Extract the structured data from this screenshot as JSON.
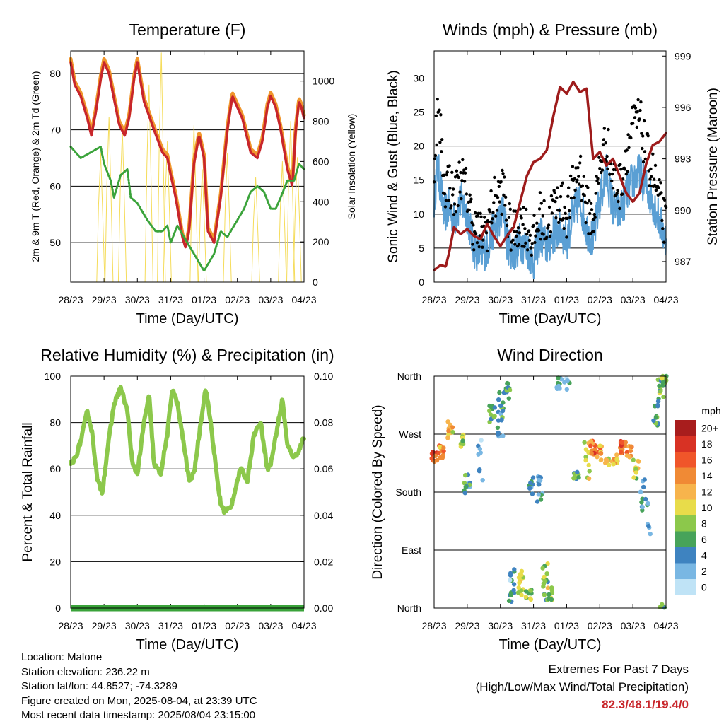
{
  "x_tick_labels": [
    "28/23",
    "29/23",
    "30/23",
    "31/23",
    "01/23",
    "02/23",
    "03/23",
    "04/23"
  ],
  "x_axis_label": "Time (Day/UTC)",
  "colors": {
    "temp_2m": "#c8262b",
    "temp_9m": "#f0962c",
    "dewpoint": "#3aa33a",
    "solar": "#f5dc5a",
    "wind": "#5a9fd4",
    "gust": "#000000",
    "pressure": "#9e1b1b",
    "rh": "#8cc84b",
    "precip": "#3aa33a"
  },
  "chart_data": [
    {
      "id": "temperature",
      "type": "line",
      "title": "Temperature (F)",
      "xlabel": "Time (Day/UTC)",
      "ylabel": "2m & 9m T (Red, Orange) & 2m Td (Green)",
      "ylabel_right": "Solar Insolation (Yellow)",
      "x_days": [
        0,
        7
      ],
      "ylim": [
        43,
        84
      ],
      "yticks": [
        50,
        60,
        70,
        80
      ],
      "ylim_right": [
        0,
        1150
      ],
      "yticks_right": [
        0,
        200,
        400,
        600,
        800,
        1000
      ],
      "series": [
        {
          "key": "temp_2m",
          "x": [
            0,
            0.12,
            0.3,
            0.5,
            0.62,
            0.75,
            0.9,
            1,
            1.15,
            1.45,
            1.62,
            1.75,
            1.9,
            2,
            2.2,
            2.5,
            2.75,
            2.9,
            3,
            3.15,
            3.35,
            3.45,
            3.55,
            3.7,
            3.85,
            4,
            4.12,
            4.3,
            4.5,
            4.7,
            4.85,
            5,
            5.15,
            5.4,
            5.6,
            5.75,
            5.9,
            6,
            6.15,
            6.3,
            6.5,
            6.65,
            6.75,
            6.85,
            6.92,
            7
          ],
          "values": [
            82,
            78,
            76,
            72,
            69,
            73,
            79,
            82,
            80,
            71,
            69,
            72,
            79,
            82,
            75,
            70,
            66,
            65,
            62,
            58,
            51,
            49,
            52,
            64,
            69,
            65,
            52,
            50,
            58,
            70,
            76,
            74,
            72,
            66,
            65,
            68,
            74,
            76,
            74,
            70,
            63,
            60,
            70,
            75,
            74,
            72
          ]
        },
        {
          "key": "dewpoint",
          "x": [
            0,
            0.3,
            0.6,
            0.9,
            1,
            1.2,
            1.3,
            1.5,
            1.7,
            1.8,
            2,
            2.3,
            2.55,
            2.75,
            2.9,
            3,
            3.2,
            3.4,
            3.6,
            3.8,
            4,
            4.1,
            4.3,
            4.5,
            4.7,
            4.9,
            5.2,
            5.4,
            5.6,
            5.8,
            6,
            6.15,
            6.3,
            6.5,
            6.7,
            6.85,
            7
          ],
          "values": [
            67,
            65,
            66,
            67,
            64,
            61,
            58,
            62,
            63,
            58,
            57,
            54,
            52,
            52,
            53,
            50,
            53,
            51,
            49,
            47,
            45,
            46,
            48,
            52,
            51,
            53,
            56,
            59,
            60,
            59,
            56,
            56,
            58,
            61,
            61,
            64,
            63
          ]
        }
      ],
      "solar_peaks": [
        {
          "day": 0.9,
          "peak": 640
        },
        {
          "day": 1.15,
          "peak": 820
        },
        {
          "day": 1.55,
          "peak": 760
        },
        {
          "day": 2.35,
          "peak": 980
        },
        {
          "day": 2.72,
          "peak": 1140
        },
        {
          "day": 2.9,
          "peak": 700
        },
        {
          "day": 3.7,
          "peak": 780
        },
        {
          "day": 3.95,
          "peak": 560
        },
        {
          "day": 4.7,
          "peak": 640
        },
        {
          "day": 5.55,
          "peak": 520
        },
        {
          "day": 6.35,
          "peak": 600
        },
        {
          "day": 6.6,
          "peak": 800
        },
        {
          "day": 6.8,
          "peak": 620
        }
      ]
    },
    {
      "id": "winds",
      "type": "line",
      "title": "Winds (mph) & Pressure (mb)",
      "xlabel": "Time (Day/UTC)",
      "ylabel": "Sonic Wind & Gust (Blue, Black)",
      "ylabel_right": "Station Pressure (Maroon)",
      "x_days": [
        0,
        7
      ],
      "ylim": [
        0,
        34
      ],
      "yticks": [
        0,
        5,
        10,
        15,
        20,
        25,
        30
      ],
      "ylim_right": [
        985.8,
        999.3
      ],
      "yticks_right": [
        987,
        990,
        993,
        996,
        999
      ],
      "series": [
        {
          "key": "wind",
          "x": [
            0,
            0.1,
            0.2,
            0.3,
            0.45,
            0.6,
            0.8,
            1,
            1.2,
            1.4,
            1.6,
            1.8,
            2,
            2.1,
            2.2,
            2.4,
            2.6,
            2.8,
            3,
            3.2,
            3.4,
            3.6,
            3.8,
            4,
            4.2,
            4.4,
            4.6,
            4.8,
            5,
            5.2,
            5.4,
            5.6,
            5.8,
            6,
            6.2,
            6.4,
            6.6,
            6.8,
            7
          ],
          "values": [
            12,
            17,
            14,
            10,
            11,
            9,
            12,
            10,
            5,
            4,
            5,
            8,
            9,
            11,
            6,
            4,
            6,
            5,
            3,
            7,
            5,
            7,
            8,
            6,
            10,
            12,
            8,
            6,
            12,
            16,
            11,
            10,
            13,
            15,
            16,
            14,
            12,
            9,
            6
          ]
        },
        {
          "key": "gust",
          "x": [
            0,
            0.1,
            0.2,
            0.3,
            0.45,
            0.6,
            0.8,
            1,
            1.2,
            1.4,
            1.6,
            1.8,
            2,
            2.1,
            2.2,
            2.4,
            2.6,
            2.8,
            3,
            3.2,
            3.4,
            3.6,
            3.8,
            4,
            4.2,
            4.4,
            4.6,
            4.8,
            5,
            5.2,
            5.4,
            5.6,
            5.8,
            6,
            6.2,
            6.4,
            6.6,
            6.8,
            7
          ],
          "values": [
            18,
            25,
            22,
            14,
            15,
            12,
            16,
            13,
            8,
            7,
            8,
            12,
            13,
            14,
            9,
            7,
            9,
            8,
            6,
            10,
            8,
            11,
            12,
            10,
            14,
            17,
            11,
            9,
            17,
            21,
            15,
            14,
            19,
            23,
            24,
            19,
            16,
            12,
            8
          ]
        },
        {
          "key": "pressure",
          "x": [
            0,
            0.2,
            0.35,
            0.45,
            0.6,
            0.8,
            1,
            1.2,
            1.4,
            1.6,
            1.8,
            2,
            2.2,
            2.4,
            2.6,
            2.8,
            3,
            3.2,
            3.4,
            3.6,
            3.8,
            4,
            4.2,
            4.4,
            4.6,
            4.8,
            5,
            5.2,
            5.4,
            5.6,
            5.8,
            6,
            6.2,
            6.4,
            6.6,
            6.8,
            7
          ],
          "values": [
            986.5,
            986.8,
            986.7,
            987.5,
            989,
            988.6,
            988.9,
            988.5,
            988.3,
            989.2,
            988.5,
            987.9,
            988.5,
            989,
            990.5,
            992,
            992.8,
            993,
            993.5,
            995.5,
            997.2,
            996.8,
            997.5,
            996.9,
            997.1,
            993,
            993.4,
            992.6,
            993,
            992,
            991,
            990.5,
            991,
            992.7,
            993.8,
            994,
            994.5
          ]
        }
      ]
    },
    {
      "id": "humidity",
      "type": "line",
      "title": "Relative Humidity (%) & Precipitation (in)",
      "xlabel": "Time (Day/UTC)",
      "ylabel": "Percent & Total Rainfall",
      "x_days": [
        0,
        7
      ],
      "ylim": [
        0,
        100
      ],
      "yticks": [
        0,
        20,
        40,
        60,
        80,
        100
      ],
      "ylim_right": [
        0,
        0.1
      ],
      "yticks_right": [
        "0.00",
        "0.02",
        "0.04",
        "0.06",
        "0.08",
        "0.10"
      ],
      "series": [
        {
          "key": "rh",
          "x": [
            0,
            0.15,
            0.3,
            0.5,
            0.65,
            0.8,
            0.95,
            1.1,
            1.3,
            1.5,
            1.7,
            1.85,
            2,
            2.2,
            2.35,
            2.5,
            2.7,
            2.9,
            3.05,
            3.2,
            3.4,
            3.55,
            3.7,
            3.9,
            4.05,
            4.2,
            4.4,
            4.5,
            4.6,
            4.8,
            5,
            5.1,
            5.3,
            5.5,
            5.7,
            5.9,
            6,
            6.2,
            6.35,
            6.5,
            6.7,
            6.85,
            7
          ],
          "values": [
            62,
            65,
            72,
            85,
            75,
            55,
            50,
            68,
            88,
            95,
            85,
            62,
            58,
            80,
            92,
            62,
            58,
            75,
            95,
            88,
            70,
            55,
            58,
            80,
            95,
            80,
            55,
            45,
            42,
            43,
            55,
            60,
            55,
            75,
            80,
            60,
            62,
            78,
            90,
            70,
            65,
            68,
            74
          ]
        },
        {
          "key": "precip",
          "x": [
            0,
            7
          ],
          "values": [
            0,
            0
          ]
        }
      ]
    },
    {
      "id": "wind_direction",
      "type": "scatter",
      "title": "Wind Direction",
      "xlabel": "Time (Day/UTC)",
      "ylabel": "Direction (Colored By Speed)",
      "x_days": [
        0,
        7
      ],
      "ylim": [
        0,
        360
      ],
      "yticks": [
        "North",
        "East",
        "South",
        "West",
        "North"
      ],
      "colorbar_title": "mph",
      "colorbar_labels": [
        "20+",
        "18",
        "16",
        "14",
        "12",
        "10",
        "8",
        "6",
        "4",
        "2",
        "0"
      ],
      "colorbar_colors": [
        "#a81d1d",
        "#d83224",
        "#f0562a",
        "#f08a35",
        "#f7b44c",
        "#e8dc4a",
        "#8cc84b",
        "#47a35a",
        "#3e83c0",
        "#79b7e3",
        "#bfe3f6"
      ],
      "clusters": [
        {
          "day": 0.0,
          "dir": 235,
          "spread": 8,
          "speed": 16,
          "count": 10
        },
        {
          "day": 0.2,
          "dir": 245,
          "spread": 12,
          "speed": 13,
          "count": 12
        },
        {
          "day": 0.5,
          "dir": 275,
          "spread": 15,
          "speed": 11,
          "count": 12
        },
        {
          "day": 0.8,
          "dir": 260,
          "spread": 10,
          "speed": 8,
          "count": 8
        },
        {
          "day": 1.0,
          "dir": 190,
          "spread": 18,
          "speed": 5,
          "count": 12
        },
        {
          "day": 1.4,
          "dir": 230,
          "spread": 40,
          "speed": 3,
          "count": 8
        },
        {
          "day": 1.75,
          "dir": 300,
          "spread": 15,
          "speed": 6,
          "count": 12
        },
        {
          "day": 2.0,
          "dir": 300,
          "spread": 35,
          "speed": 5,
          "count": 18
        },
        {
          "day": 2.2,
          "dir": 340,
          "spread": 15,
          "speed": 6,
          "count": 12
        },
        {
          "day": 2.35,
          "dir": 40,
          "spread": 35,
          "speed": 3,
          "count": 14
        },
        {
          "day": 2.6,
          "dir": 40,
          "spread": 20,
          "speed": 9,
          "count": 14
        },
        {
          "day": 2.85,
          "dir": 20,
          "spread": 12,
          "speed": 7,
          "count": 10
        },
        {
          "day": 2.95,
          "dir": 190,
          "spread": 15,
          "speed": 5,
          "count": 10
        },
        {
          "day": 3.2,
          "dir": 185,
          "spread": 20,
          "speed": 4,
          "count": 14
        },
        {
          "day": 3.35,
          "dir": 40,
          "spread": 30,
          "speed": 7,
          "count": 14
        },
        {
          "day": 3.5,
          "dir": 20,
          "spread": 12,
          "speed": 9,
          "count": 10
        },
        {
          "day": 3.75,
          "dir": 350,
          "spread": 10,
          "speed": 4,
          "count": 10
        },
        {
          "day": 4.0,
          "dir": 345,
          "spread": 25,
          "speed": 3,
          "count": 6
        },
        {
          "day": 4.3,
          "dir": 205,
          "spread": 6,
          "speed": 6,
          "count": 10
        },
        {
          "day": 4.6,
          "dir": 230,
          "spread": 30,
          "speed": 10,
          "count": 10
        },
        {
          "day": 4.8,
          "dir": 250,
          "spread": 12,
          "speed": 15,
          "count": 14
        },
        {
          "day": 5.0,
          "dir": 240,
          "spread": 12,
          "speed": 13,
          "count": 12
        },
        {
          "day": 5.2,
          "dir": 225,
          "spread": 10,
          "speed": 11,
          "count": 8
        },
        {
          "day": 5.45,
          "dir": 230,
          "spread": 12,
          "speed": 12,
          "count": 10
        },
        {
          "day": 5.7,
          "dir": 250,
          "spread": 10,
          "speed": 16,
          "count": 14
        },
        {
          "day": 5.9,
          "dir": 240,
          "spread": 12,
          "speed": 14,
          "count": 10
        },
        {
          "day": 6.1,
          "dir": 215,
          "spread": 15,
          "speed": 9,
          "count": 10
        },
        {
          "day": 6.3,
          "dir": 180,
          "spread": 30,
          "speed": 4,
          "count": 10
        },
        {
          "day": 6.5,
          "dir": 140,
          "spread": 25,
          "speed": 3,
          "count": 6
        },
        {
          "day": 6.7,
          "dir": 300,
          "spread": 25,
          "speed": 6,
          "count": 14
        },
        {
          "day": 6.85,
          "dir": 340,
          "spread": 15,
          "speed": 7,
          "count": 14
        },
        {
          "day": 6.95,
          "dir": 355,
          "spread": 6,
          "speed": 8,
          "count": 10
        },
        {
          "day": 6.9,
          "dir": 3,
          "spread": 3,
          "speed": 6,
          "count": 5
        }
      ]
    }
  ],
  "station_info": {
    "location": "Location: Malone",
    "elevation": "Station elevation: 236.22 m",
    "latlon": "Station lat/lon: 44.8527; -74.3289",
    "created": "Figure created on Mon, 2025-08-04, at 23:39 UTC",
    "recent": "Most recent data timestamp: 2025/08/04 23:15:00"
  },
  "extremes": {
    "title": "Extremes For Past 7 Days",
    "subtitle": "(High/Low/Max Wind/Total Precipitation)",
    "values": "82.3/48.1/19.4/0"
  }
}
